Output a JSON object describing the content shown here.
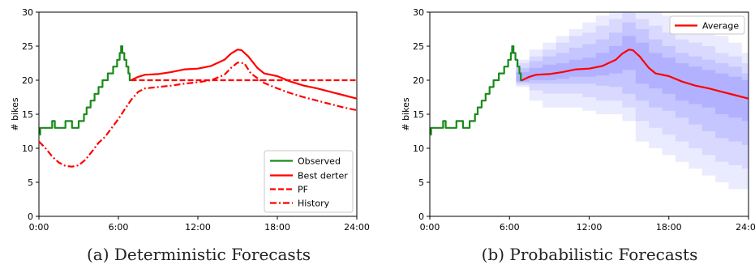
{
  "colors": {
    "observed": "#1a8a1a",
    "forecast": "#ff0000",
    "uncertainty": "#3b3bff"
  },
  "chart_data": [
    {
      "type": "line",
      "caption": "(a) Deterministic Forecasts",
      "ylabel": "# bikes",
      "xlim": [
        0,
        24
      ],
      "ylim": [
        0,
        30
      ],
      "x_ticks": [
        0,
        6,
        12,
        18,
        24
      ],
      "x_tick_labels": [
        "0:00",
        "6:00",
        "12:00",
        "18:00",
        "24:00"
      ],
      "y_ticks": [
        0,
        5,
        10,
        15,
        20,
        25,
        30
      ],
      "y_tick_labels": [
        "0",
        "5",
        "10",
        "15",
        "20",
        "25",
        "30"
      ],
      "legend_position": "bottom-right",
      "series": [
        {
          "name": "Observed",
          "style": "solid",
          "color": "#1a8a1a",
          "x": [
            0.0,
            0.1,
            0.1,
            1.0,
            1.0,
            1.2,
            1.2,
            1.4,
            1.4,
            2.0,
            2.0,
            2.5,
            2.5,
            3.0,
            3.0,
            3.4,
            3.4,
            3.6,
            3.6,
            3.9,
            3.9,
            4.2,
            4.2,
            4.5,
            4.5,
            4.8,
            4.8,
            5.2,
            5.2,
            5.6,
            5.6,
            5.9,
            5.9,
            6.1,
            6.1,
            6.2,
            6.2,
            6.3,
            6.3,
            6.45,
            6.45,
            6.6,
            6.6,
            6.75,
            6.75,
            6.85,
            6.85,
            7.0
          ],
          "y": [
            12,
            12,
            13,
            13,
            14,
            14,
            13,
            13,
            13,
            13,
            14,
            14,
            13,
            13,
            14,
            14,
            15,
            15,
            16,
            16,
            17,
            17,
            18,
            18,
            19,
            19,
            20,
            20,
            21,
            21,
            22,
            22,
            23,
            23,
            24,
            24,
            25,
            25,
            24,
            24,
            23,
            23,
            22,
            22,
            21,
            21,
            20,
            20
          ]
        },
        {
          "name": "Best derter",
          "style": "solid",
          "color": "#ff0000",
          "x": [
            6.95,
            7.5,
            8.0,
            9.0,
            10.0,
            11.0,
            12.0,
            13.0,
            14.0,
            14.5,
            15.0,
            15.3,
            15.8,
            16.5,
            17.0,
            18.0,
            19.0,
            20.0,
            21.0,
            22.0,
            23.0,
            24.0
          ],
          "y": [
            20.0,
            20.5,
            20.8,
            20.9,
            21.2,
            21.6,
            21.7,
            22.1,
            23.0,
            23.9,
            24.5,
            24.4,
            23.5,
            21.8,
            21.0,
            20.6,
            19.8,
            19.2,
            18.8,
            18.3,
            17.8,
            17.3
          ]
        },
        {
          "name": "PF",
          "style": "dashed",
          "color": "#ff0000",
          "x": [
            6.95,
            24.0
          ],
          "y": [
            20.0,
            20.0
          ]
        },
        {
          "name": "History",
          "style": "dashdot",
          "color": "#ff0000",
          "x": [
            0.0,
            0.5,
            1.0,
            1.5,
            2.0,
            2.5,
            3.0,
            3.5,
            4.0,
            4.5,
            5.0,
            5.5,
            6.0,
            6.5,
            7.0,
            7.5,
            8.0,
            9.0,
            10.0,
            11.0,
            12.0,
            13.0,
            14.0,
            14.5,
            15.0,
            15.5,
            16.0,
            17.0,
            18.0,
            19.0,
            20.0,
            21.0,
            22.0,
            23.0,
            24.0
          ],
          "y": [
            11.0,
            10.0,
            8.8,
            7.9,
            7.4,
            7.3,
            7.5,
            8.3,
            9.5,
            10.8,
            11.7,
            13.0,
            14.3,
            15.8,
            17.2,
            18.3,
            18.8,
            19.0,
            19.2,
            19.5,
            19.7,
            20.0,
            20.8,
            21.8,
            22.6,
            22.5,
            21.0,
            19.6,
            18.8,
            18.1,
            17.5,
            17.0,
            16.5,
            16.0,
            15.6
          ]
        }
      ]
    },
    {
      "type": "area",
      "caption": "(b) Probabilistic Forecasts",
      "ylabel": "# bikes",
      "xlim": [
        0,
        24
      ],
      "ylim": [
        0,
        30
      ],
      "x_ticks": [
        0,
        6,
        12,
        18,
        24
      ],
      "x_tick_labels": [
        "0:00",
        "6:00",
        "12:00",
        "18:00",
        "24:00"
      ],
      "y_ticks": [
        0,
        5,
        10,
        15,
        20,
        25,
        30
      ],
      "y_tick_labels": [
        "0",
        "5",
        "10",
        "15",
        "20",
        "25",
        "30"
      ],
      "legend_position": "top-right",
      "band_x": [
        7,
        8,
        9,
        10,
        11,
        12,
        13,
        14,
        15,
        16,
        17,
        18,
        19,
        20,
        21,
        22,
        23,
        24
      ],
      "bands": [
        {
          "opacity": 0.1,
          "lower": [
            19,
            17,
            16,
            16,
            16,
            15.5,
            15,
            15,
            14,
            11,
            10,
            9,
            8,
            7,
            6,
            5,
            4,
            4
          ],
          "upper": [
            23,
            24.5,
            25.5,
            26.5,
            27.5,
            28.5,
            29.5,
            30,
            30,
            30,
            30,
            29.5,
            28.5,
            27.5,
            27,
            26.5,
            25.5,
            24
          ]
        },
        {
          "opacity": 0.1,
          "lower": [
            19.3,
            18.5,
            18,
            18,
            18,
            17.5,
            17,
            17,
            16,
            14,
            13,
            12,
            11,
            10,
            9,
            8,
            7.5,
            7
          ],
          "upper": [
            22.5,
            23.5,
            24.5,
            25.5,
            26.5,
            27,
            28,
            29,
            30,
            29,
            28,
            27,
            26,
            25.5,
            25,
            24,
            23.5,
            22.5
          ]
        },
        {
          "opacity": 0.12,
          "lower": [
            19.6,
            19.5,
            19.5,
            19.5,
            19.5,
            19.5,
            19.2,
            19,
            18,
            17,
            16,
            15.5,
            14.5,
            13.5,
            12.5,
            11.5,
            11,
            10.5
          ],
          "upper": [
            21.8,
            22.8,
            23.5,
            24,
            24.8,
            25.3,
            26,
            27,
            28.5,
            27.5,
            26,
            25,
            24,
            23.5,
            23,
            22.5,
            22,
            21
          ]
        },
        {
          "opacity": 0.14,
          "lower": [
            19.8,
            20,
            20,
            20.2,
            20.5,
            20.5,
            20.7,
            21,
            21.5,
            19.5,
            18.8,
            18,
            17,
            16.5,
            16,
            15,
            14.5,
            14
          ],
          "upper": [
            21.2,
            21.8,
            22.3,
            22.5,
            23,
            23.3,
            24,
            25,
            26.5,
            25.5,
            24,
            23.3,
            22.5,
            22,
            21.5,
            21,
            20.5,
            20
          ]
        }
      ],
      "series": [
        {
          "name": "Observed",
          "style": "solid",
          "color": "#1a8a1a",
          "x": [
            0.0,
            0.1,
            0.1,
            1.0,
            1.0,
            1.2,
            1.2,
            1.4,
            1.4,
            2.0,
            2.0,
            2.5,
            2.5,
            3.0,
            3.0,
            3.4,
            3.4,
            3.6,
            3.6,
            3.9,
            3.9,
            4.2,
            4.2,
            4.5,
            4.5,
            4.8,
            4.8,
            5.2,
            5.2,
            5.6,
            5.6,
            5.9,
            5.9,
            6.1,
            6.1,
            6.2,
            6.2,
            6.3,
            6.3,
            6.45,
            6.45,
            6.6,
            6.6,
            6.75,
            6.75,
            6.85,
            6.85,
            7.0
          ],
          "y": [
            12,
            12,
            13,
            13,
            14,
            14,
            13,
            13,
            13,
            13,
            14,
            14,
            13,
            13,
            14,
            14,
            15,
            15,
            16,
            16,
            17,
            17,
            18,
            18,
            19,
            19,
            20,
            20,
            21,
            21,
            22,
            22,
            23,
            23,
            24,
            24,
            25,
            25,
            24,
            24,
            23,
            23,
            22,
            22,
            21,
            21,
            20,
            20
          ]
        },
        {
          "name": "Average",
          "style": "solid",
          "color": "#ff0000",
          "x": [
            6.95,
            7.5,
            8.0,
            9.0,
            10.0,
            11.0,
            12.0,
            13.0,
            14.0,
            14.5,
            15.0,
            15.3,
            15.8,
            16.5,
            17.0,
            18.0,
            19.0,
            20.0,
            21.0,
            22.0,
            23.0,
            24.0
          ],
          "y": [
            20.0,
            20.5,
            20.8,
            20.9,
            21.2,
            21.6,
            21.7,
            22.1,
            23.0,
            23.9,
            24.5,
            24.4,
            23.5,
            21.8,
            21.0,
            20.6,
            19.8,
            19.2,
            18.8,
            18.3,
            17.8,
            17.3
          ]
        }
      ]
    }
  ]
}
